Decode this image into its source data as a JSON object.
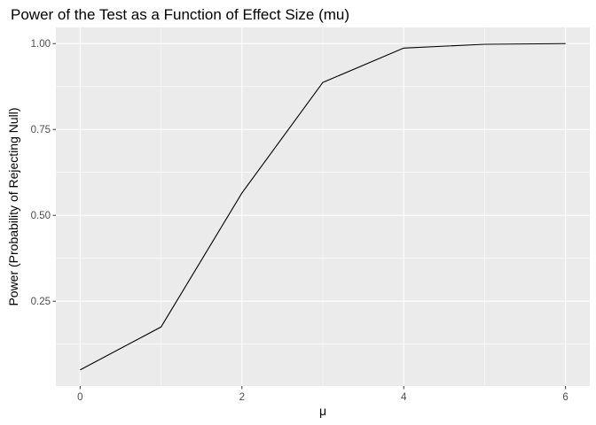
{
  "chart_data": {
    "type": "line",
    "title": "Power of the Test as a Function of Effect Size (mu)",
    "xlabel": "μ",
    "ylabel": "Power (Probability of Rejecting Null)",
    "x": [
      0,
      1,
      2,
      3,
      4,
      5,
      6
    ],
    "series": [
      {
        "values": [
          0.05,
          0.175,
          0.565,
          0.887,
          0.987,
          0.998,
          1.0
        ]
      }
    ],
    "xlim": [
      -0.3,
      6.3
    ],
    "ylim": [
      0.003,
      1.047
    ],
    "x_ticks": [
      0,
      2,
      4,
      6
    ],
    "x_tick_labels": [
      "0",
      "2",
      "4",
      "6"
    ],
    "y_ticks": [
      0.25,
      0.5,
      0.75,
      1.0
    ],
    "y_tick_labels": [
      "0.25",
      "0.50",
      "0.75",
      "1.00"
    ],
    "grid": true,
    "colors": {
      "panel": "#ebebeb",
      "grid": "#ffffff",
      "line": "#000000"
    }
  }
}
